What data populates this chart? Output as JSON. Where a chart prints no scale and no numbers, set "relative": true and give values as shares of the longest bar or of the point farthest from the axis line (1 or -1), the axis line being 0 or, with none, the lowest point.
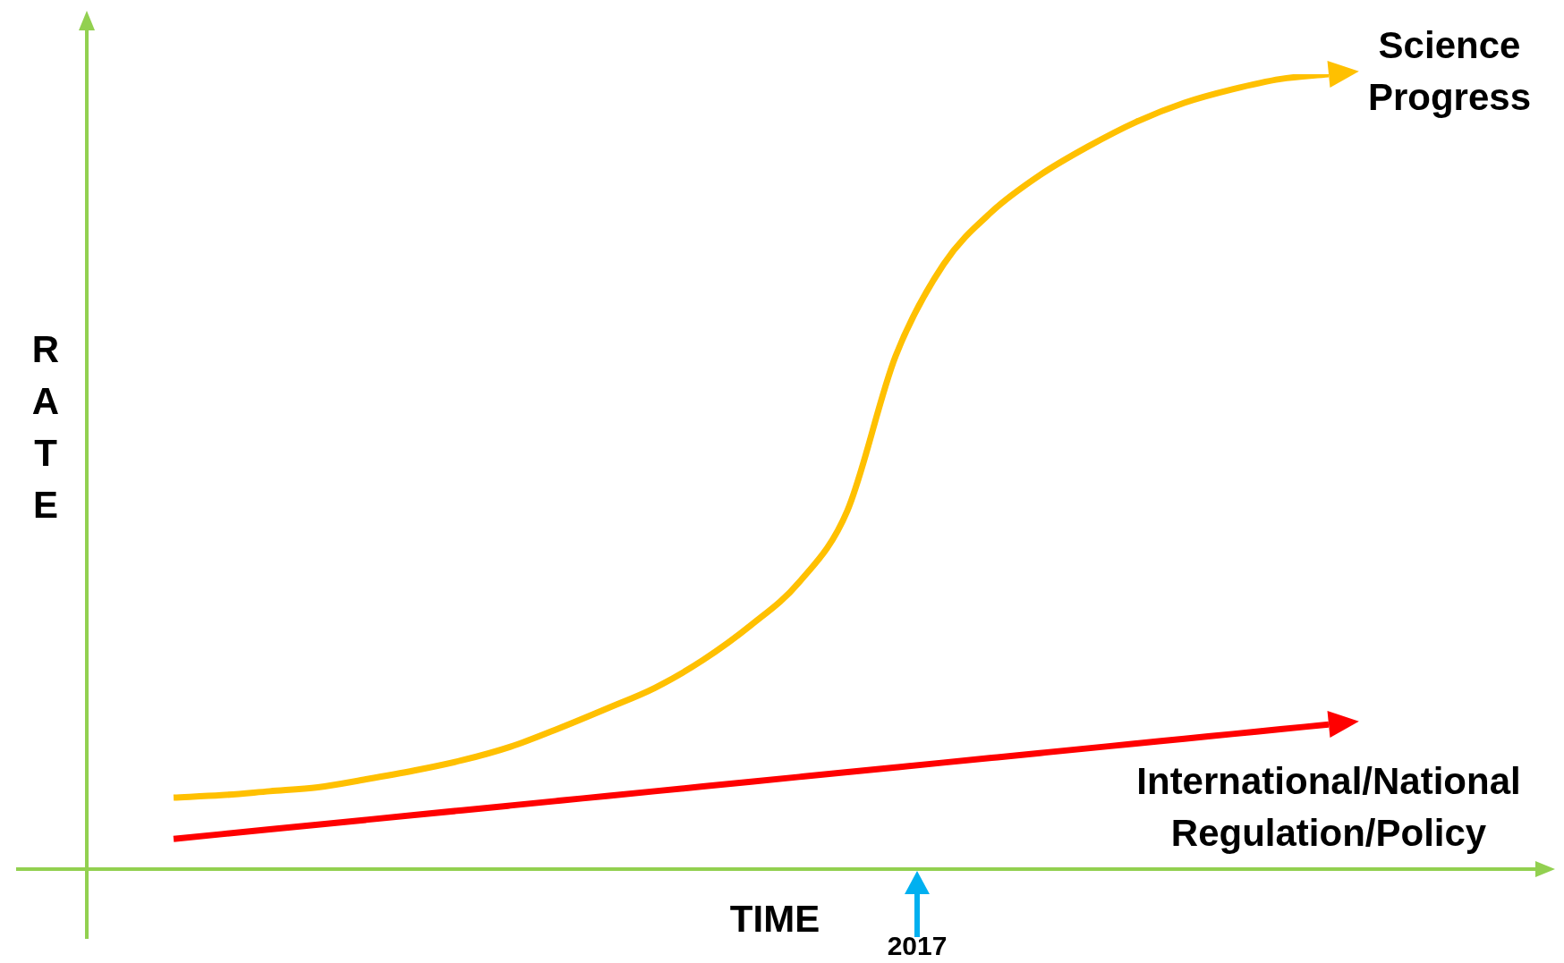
{
  "chart_data": {
    "type": "line",
    "relative": true,
    "xlabel": "TIME",
    "ylabel": "RATE",
    "marker": "none",
    "categories": [
      null,
      null,
      null,
      null,
      null,
      null,
      null,
      null,
      null,
      null,
      null,
      null,
      null,
      null,
      null,
      null,
      null,
      null,
      null,
      null,
      null,
      null,
      null,
      null,
      null
    ],
    "series": [
      {
        "name": "Science Progress",
        "color": "#ffc000",
        "values": [
          0.09,
          0.093,
          0.098,
          0.103,
          0.113,
          0.124,
          0.137,
          0.154,
          0.177,
          0.202,
          0.228,
          0.263,
          0.307,
          0.361,
          0.451,
          0.645,
          0.761,
          0.827,
          0.873,
          0.909,
          0.94,
          0.964,
          0.981,
          0.994,
          1
        ]
      },
      {
        "name": "International/National Regulation/Policy",
        "color": "#ff0000",
        "values": [
          0.038,
          0.044,
          0.05,
          0.056,
          0.062,
          0.068,
          0.074,
          0.08,
          0.086,
          0.092,
          0.098,
          0.104,
          0.11,
          0.116,
          0.122,
          0.128,
          0.134,
          0.14,
          0.146,
          0.152,
          0.158,
          0.164,
          0.17,
          0.176,
          0.182
        ]
      }
    ],
    "annotations": [
      "2017"
    ]
  }
}
